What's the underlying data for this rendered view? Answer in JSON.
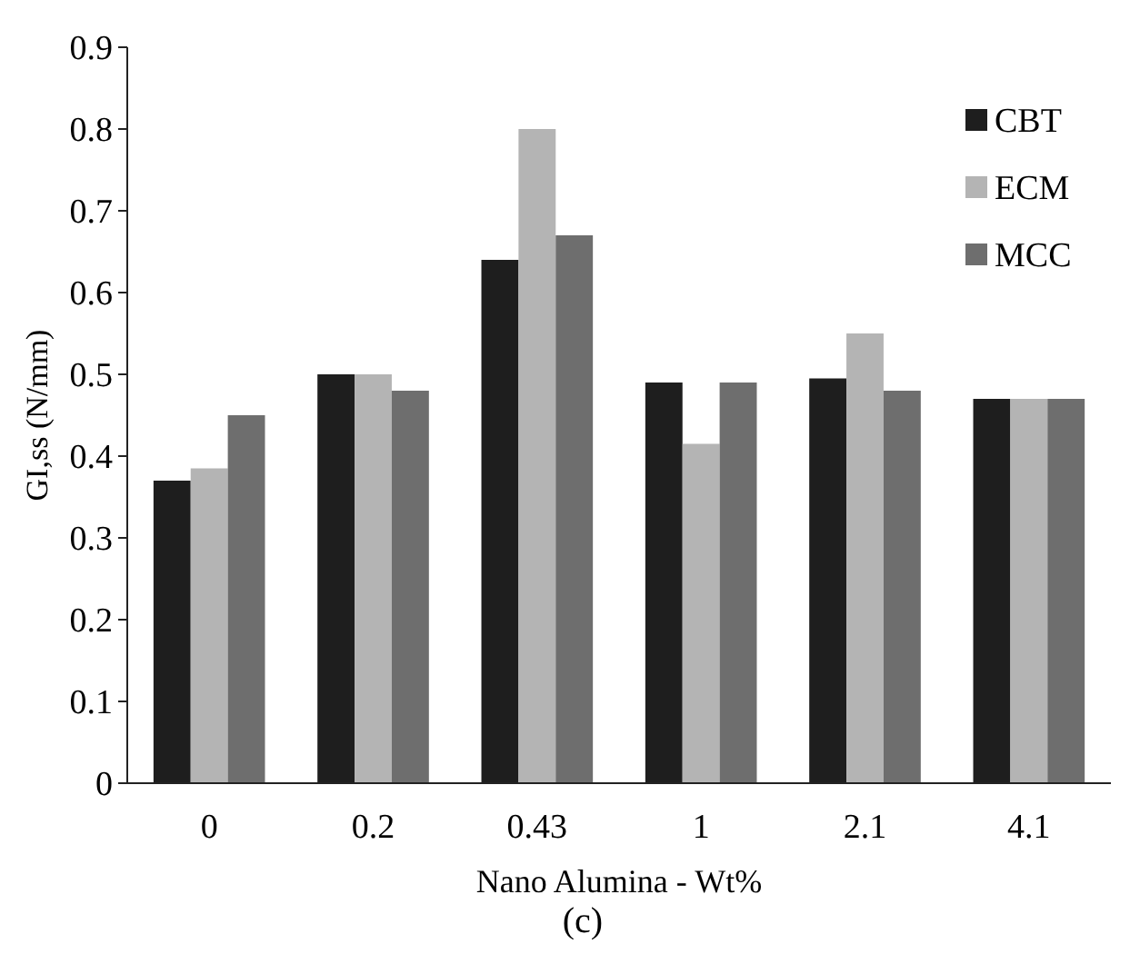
{
  "chart_data": {
    "type": "bar",
    "xlabel": "Nano Alumina - Wt%",
    "ylabel": "GI,ss (N/mm)",
    "annotations": [
      "(c)"
    ],
    "categories": [
      "0",
      "0.2",
      "0.43",
      "1",
      "2.1",
      "4.1"
    ],
    "series": [
      {
        "name": "CBT",
        "color": "#1e1e1e",
        "values": [
          0.37,
          0.5,
          0.64,
          0.49,
          0.495,
          0.47
        ]
      },
      {
        "name": "ECM",
        "color": "#b4b4b4",
        "values": [
          0.385,
          0.5,
          0.8,
          0.415,
          0.55,
          0.47
        ]
      },
      {
        "name": "MCC",
        "color": "#6e6e6e",
        "values": [
          0.45,
          0.48,
          0.67,
          0.49,
          0.48,
          0.47
        ]
      }
    ],
    "ylim": [
      0,
      0.9
    ],
    "yticks": [
      0,
      0.1,
      0.2,
      0.3,
      0.4,
      0.5,
      0.6,
      0.7,
      0.8,
      0.9
    ],
    "legend": "top right",
    "grid": false
  }
}
